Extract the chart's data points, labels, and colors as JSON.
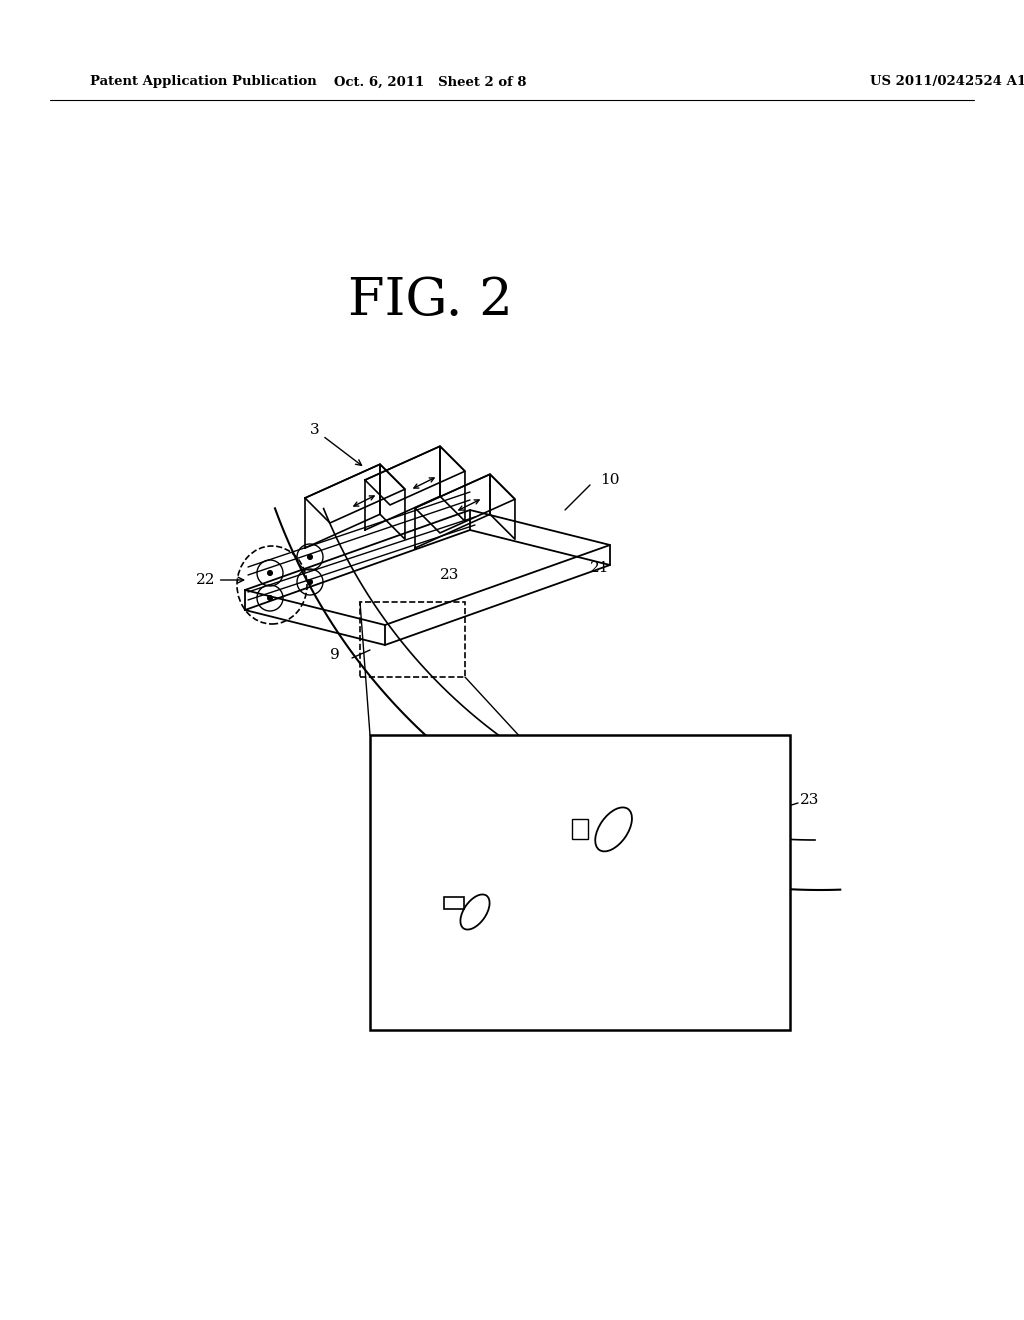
{
  "background_color": "#ffffff",
  "header_left": "Patent Application Publication",
  "header_center": "Oct. 6, 2011   Sheet 2 of 8",
  "header_right": "US 2011/0242524 A1",
  "fig_title": "FIG. 2"
}
